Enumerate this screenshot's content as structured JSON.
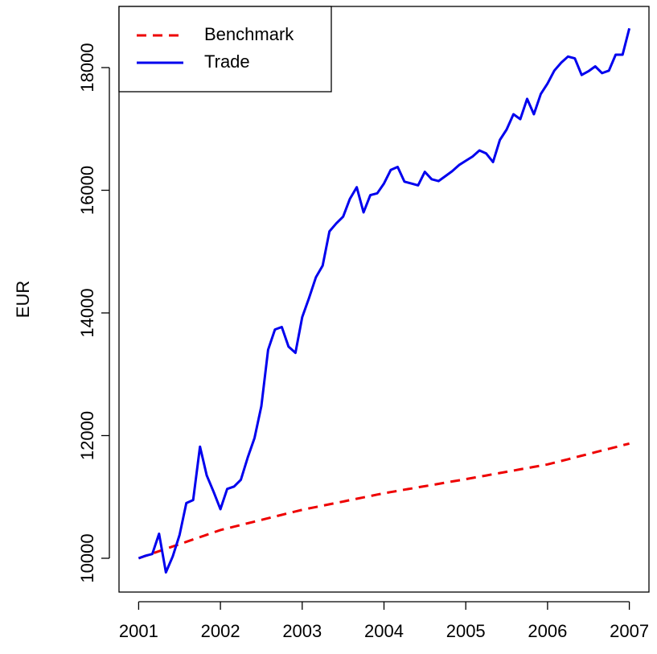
{
  "chart_data": {
    "type": "line",
    "ylabel": "EUR",
    "x": [
      2001,
      2001.083,
      2001.167,
      2001.25,
      2001.333,
      2001.417,
      2001.5,
      2001.583,
      2001.667,
      2001.75,
      2001.833,
      2001.917,
      2002,
      2002.083,
      2002.167,
      2002.25,
      2002.333,
      2002.417,
      2002.5,
      2002.583,
      2002.667,
      2002.75,
      2002.833,
      2002.917,
      2003,
      2003.083,
      2003.167,
      2003.25,
      2003.333,
      2003.417,
      2003.5,
      2003.583,
      2003.667,
      2003.75,
      2003.833,
      2003.917,
      2004,
      2004.083,
      2004.167,
      2004.25,
      2004.333,
      2004.417,
      2004.5,
      2004.583,
      2004.667,
      2004.75,
      2004.833,
      2004.917,
      2005,
      2005.083,
      2005.167,
      2005.25,
      2005.333,
      2005.417,
      2005.5,
      2005.583,
      2005.667,
      2005.75,
      2005.833,
      2005.917,
      2006,
      2006.083,
      2006.167,
      2006.25,
      2006.333,
      2006.417,
      2006.5,
      2006.583,
      2006.667,
      2006.75,
      2006.833,
      2006.917,
      2007
    ],
    "series": [
      {
        "name": "Benchmark",
        "color": "#ee0000",
        "linestyle": "dashed",
        "values": [
          10000,
          10038,
          10077,
          10115,
          10153,
          10192,
          10230,
          10268,
          10307,
          10345,
          10383,
          10422,
          10460,
          10488,
          10515,
          10543,
          10570,
          10598,
          10625,
          10653,
          10680,
          10708,
          10735,
          10763,
          10790,
          10813,
          10835,
          10858,
          10880,
          10903,
          10925,
          10948,
          10970,
          10993,
          11015,
          11038,
          11060,
          11079,
          11098,
          11118,
          11137,
          11156,
          11175,
          11194,
          11213,
          11233,
          11252,
          11271,
          11290,
          11310,
          11330,
          11350,
          11370,
          11390,
          11410,
          11430,
          11450,
          11470,
          11490,
          11510,
          11530,
          11558,
          11587,
          11615,
          11643,
          11672,
          11700,
          11728,
          11757,
          11785,
          11813,
          11842,
          11870
        ]
      },
      {
        "name": "Trade",
        "color": "#0000ee",
        "linestyle": "solid",
        "values": [
          10000,
          10040,
          10070,
          10400,
          9770,
          10030,
          10380,
          10900,
          10950,
          11820,
          11350,
          11080,
          10800,
          11130,
          11170,
          11280,
          11640,
          11960,
          12480,
          13400,
          13730,
          13770,
          13450,
          13350,
          13930,
          14240,
          14580,
          14770,
          15330,
          15460,
          15570,
          15860,
          16050,
          15640,
          15920,
          15950,
          16110,
          16330,
          16380,
          16140,
          16110,
          16080,
          16300,
          16180,
          16150,
          16230,
          16310,
          16410,
          16480,
          16550,
          16650,
          16600,
          16460,
          16820,
          16990,
          17240,
          17160,
          17490,
          17240,
          17570,
          17740,
          17950,
          18080,
          18180,
          18150,
          17880,
          17940,
          18020,
          17910,
          17950,
          18210,
          18210,
          18640
        ]
      }
    ],
    "xlim": [
      2000.76,
      2007.24
    ],
    "xticks": [
      2001,
      2002,
      2003,
      2004,
      2005,
      2006,
      2007
    ],
    "ylim": [
      9449,
      18997
    ],
    "yticks": [
      10000,
      12000,
      14000,
      16000,
      18000
    ],
    "legend": "top-left"
  }
}
